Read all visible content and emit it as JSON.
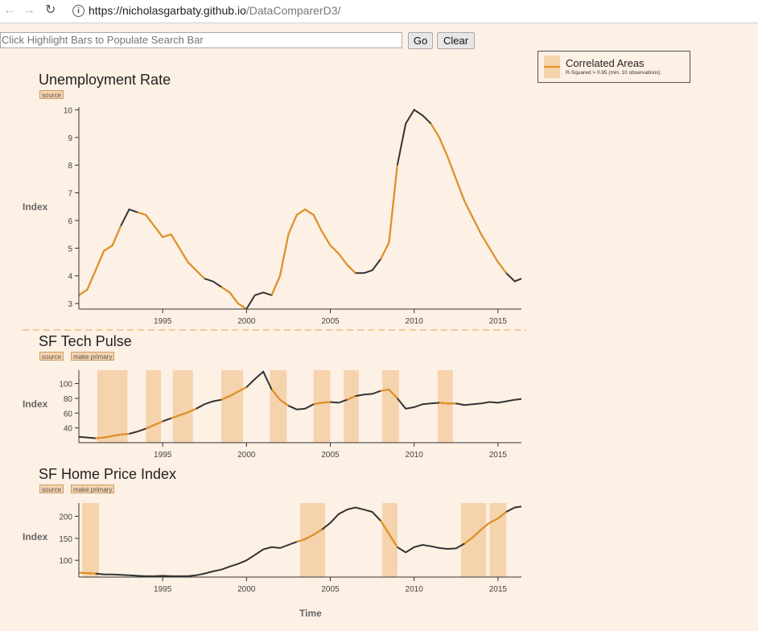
{
  "browser": {
    "url_host": "https://nicholasgarbaty.github.io",
    "url_path": "/DataComparerD3/",
    "info_glyph": "i"
  },
  "search": {
    "placeholder": "Click Highlight Bars to Populate Search Bar",
    "go_label": "Go",
    "clear_label": "Clear"
  },
  "legend": {
    "title": "Correlated Areas",
    "subtitle": "R-Squared > 0.95 (min. 10 observations)"
  },
  "axis_title": "Time",
  "colors": {
    "background": "#fdf0e5",
    "highlight": "#f5d3ad",
    "line": "#333333",
    "correlated_line": "#e8931f",
    "divider": "#f5c896"
  },
  "charts": [
    {
      "title": "Unemployment Rate",
      "buttons": [
        "source"
      ],
      "ylabel": "Index"
    },
    {
      "title": "SF Tech Pulse",
      "buttons": [
        "source",
        "make primary"
      ],
      "ylabel": "Index"
    },
    {
      "title": "SF Home Price Index",
      "buttons": [
        "source",
        "make primary"
      ],
      "ylabel": "Index"
    }
  ],
  "chart_data": [
    {
      "type": "line",
      "title": "Unemployment Rate",
      "ylabel": "Index",
      "xlim": [
        1990,
        2016.4
      ],
      "ylim": [
        2.8,
        10.1
      ],
      "xticks": [
        1995,
        2000,
        2005,
        2010,
        2015
      ],
      "yticks": [
        3,
        4,
        5,
        6,
        7,
        8,
        9,
        10
      ],
      "x": [
        1990,
        1990.5,
        1991,
        1991.5,
        1992,
        1992.5,
        1993,
        1993.5,
        1994,
        1994.5,
        1995,
        1995.5,
        1996,
        1996.5,
        1997,
        1997.5,
        1998,
        1998.5,
        1999,
        1999.5,
        2000,
        2000.5,
        2001,
        2001.5,
        2002,
        2002.5,
        2003,
        2003.5,
        2004,
        2004.5,
        2005,
        2005.5,
        2006,
        2006.5,
        2007,
        2007.5,
        2008,
        2008.5,
        2009,
        2009.5,
        2010,
        2010.5,
        2011,
        2011.5,
        2012,
        2012.5,
        2013,
        2013.5,
        2014,
        2014.5,
        2015,
        2015.5,
        2016,
        2016.4
      ],
      "values": [
        3.3,
        3.5,
        4.2,
        4.9,
        5.1,
        5.8,
        6.4,
        6.3,
        6.2,
        5.8,
        5.4,
        5.5,
        5.0,
        4.5,
        4.2,
        3.9,
        3.8,
        3.6,
        3.4,
        3.0,
        2.8,
        3.3,
        3.4,
        3.3,
        4.0,
        5.5,
        6.2,
        6.4,
        6.2,
        5.6,
        5.1,
        4.8,
        4.4,
        4.1,
        4.1,
        4.2,
        4.6,
        5.2,
        8.0,
        9.5,
        10.0,
        9.8,
        9.5,
        9.0,
        8.3,
        7.5,
        6.7,
        6.1,
        5.5,
        5.0,
        4.5,
        4.1,
        3.8,
        3.9
      ],
      "correlated_ranges": [
        [
          1990.1,
          1992.6
        ],
        [
          1993.7,
          1997.3
        ],
        [
          1998.7,
          2000.0
        ],
        [
          2001.4,
          2004.0
        ],
        [
          2004.1,
          2006.4
        ],
        [
          2008.0,
          2009.2
        ],
        [
          2010.9,
          2013.5
        ],
        [
          2013.7,
          2015.5
        ]
      ]
    },
    {
      "type": "line",
      "title": "SF Tech Pulse",
      "ylabel": "Index",
      "xlim": [
        1990,
        2016.4
      ],
      "ylim": [
        20,
        118
      ],
      "xticks": [
        1995,
        2000,
        2005,
        2010,
        2015
      ],
      "yticks": [
        40,
        60,
        80,
        100
      ],
      "x": [
        1990,
        1990.5,
        1991,
        1991.5,
        1992,
        1992.5,
        1993,
        1993.5,
        1994,
        1994.5,
        1995,
        1995.5,
        1996,
        1996.5,
        1997,
        1997.5,
        1998,
        1998.5,
        1999,
        1999.5,
        2000,
        2000.5,
        2001,
        2001.5,
        2002,
        2002.5,
        2003,
        2003.5,
        2004,
        2004.5,
        2005,
        2005.5,
        2006,
        2006.5,
        2007,
        2007.5,
        2008,
        2008.5,
        2009,
        2009.5,
        2010,
        2010.5,
        2011,
        2011.5,
        2012,
        2012.5,
        2013,
        2013.5,
        2014,
        2014.5,
        2015,
        2015.5,
        2016,
        2016.4
      ],
      "values": [
        28,
        27,
        26,
        27,
        29,
        31,
        32,
        35,
        39,
        44,
        49,
        53,
        57,
        61,
        66,
        72,
        76,
        78,
        83,
        89,
        95,
        106,
        116,
        92,
        78,
        70,
        65,
        66,
        72,
        74,
        75,
        74,
        78,
        83,
        85,
        86,
        90,
        92,
        80,
        66,
        68,
        72,
        73,
        74,
        73,
        73,
        71,
        72,
        73,
        75,
        74,
        76,
        78,
        79
      ],
      "highlight_ranges": [
        [
          1991.1,
          1992.9
        ],
        [
          1994.0,
          1994.9
        ],
        [
          1995.6,
          1996.8
        ],
        [
          1998.5,
          1999.8
        ],
        [
          2001.4,
          2002.4
        ],
        [
          2004.0,
          2005.0
        ],
        [
          2005.8,
          2006.7
        ],
        [
          2008.1,
          2009.1
        ],
        [
          2011.4,
          2012.3
        ]
      ]
    },
    {
      "type": "line",
      "title": "SF Home Price Index",
      "ylabel": "Index",
      "xlim": [
        1990,
        2016.4
      ],
      "ylim": [
        62,
        230
      ],
      "xticks": [
        1995,
        2000,
        2005,
        2010,
        2015
      ],
      "yticks": [
        100,
        150,
        200
      ],
      "x": [
        1990,
        1990.5,
        1991,
        1991.5,
        1992,
        1992.5,
        1993,
        1993.5,
        1994,
        1994.5,
        1995,
        1995.5,
        1996,
        1996.5,
        1997,
        1997.5,
        1998,
        1998.5,
        1999,
        1999.5,
        2000,
        2000.5,
        2001,
        2001.5,
        2002,
        2002.5,
        2003,
        2003.5,
        2004,
        2004.5,
        2005,
        2005.5,
        2006,
        2006.5,
        2007,
        2007.5,
        2008,
        2008.5,
        2009,
        2009.5,
        2010,
        2010.5,
        2011,
        2011.5,
        2012,
        2012.5,
        2013,
        2013.5,
        2014,
        2014.5,
        2015,
        2015.5,
        2016,
        2016.4
      ],
      "values": [
        72,
        71,
        70,
        68,
        68,
        67,
        66,
        65,
        64,
        64,
        65,
        64,
        64,
        64,
        66,
        70,
        75,
        79,
        86,
        92,
        100,
        112,
        125,
        130,
        128,
        135,
        142,
        148,
        158,
        170,
        185,
        205,
        215,
        220,
        215,
        210,
        190,
        160,
        130,
        118,
        130,
        135,
        132,
        128,
        126,
        127,
        138,
        152,
        170,
        185,
        195,
        210,
        220,
        222
      ],
      "highlight_ranges": [
        [
          1990.2,
          1991.2
        ],
        [
          2003.2,
          2004.7
        ],
        [
          2008.1,
          2009.0
        ],
        [
          2012.8,
          2014.3
        ],
        [
          2014.5,
          2015.5
        ]
      ]
    }
  ]
}
